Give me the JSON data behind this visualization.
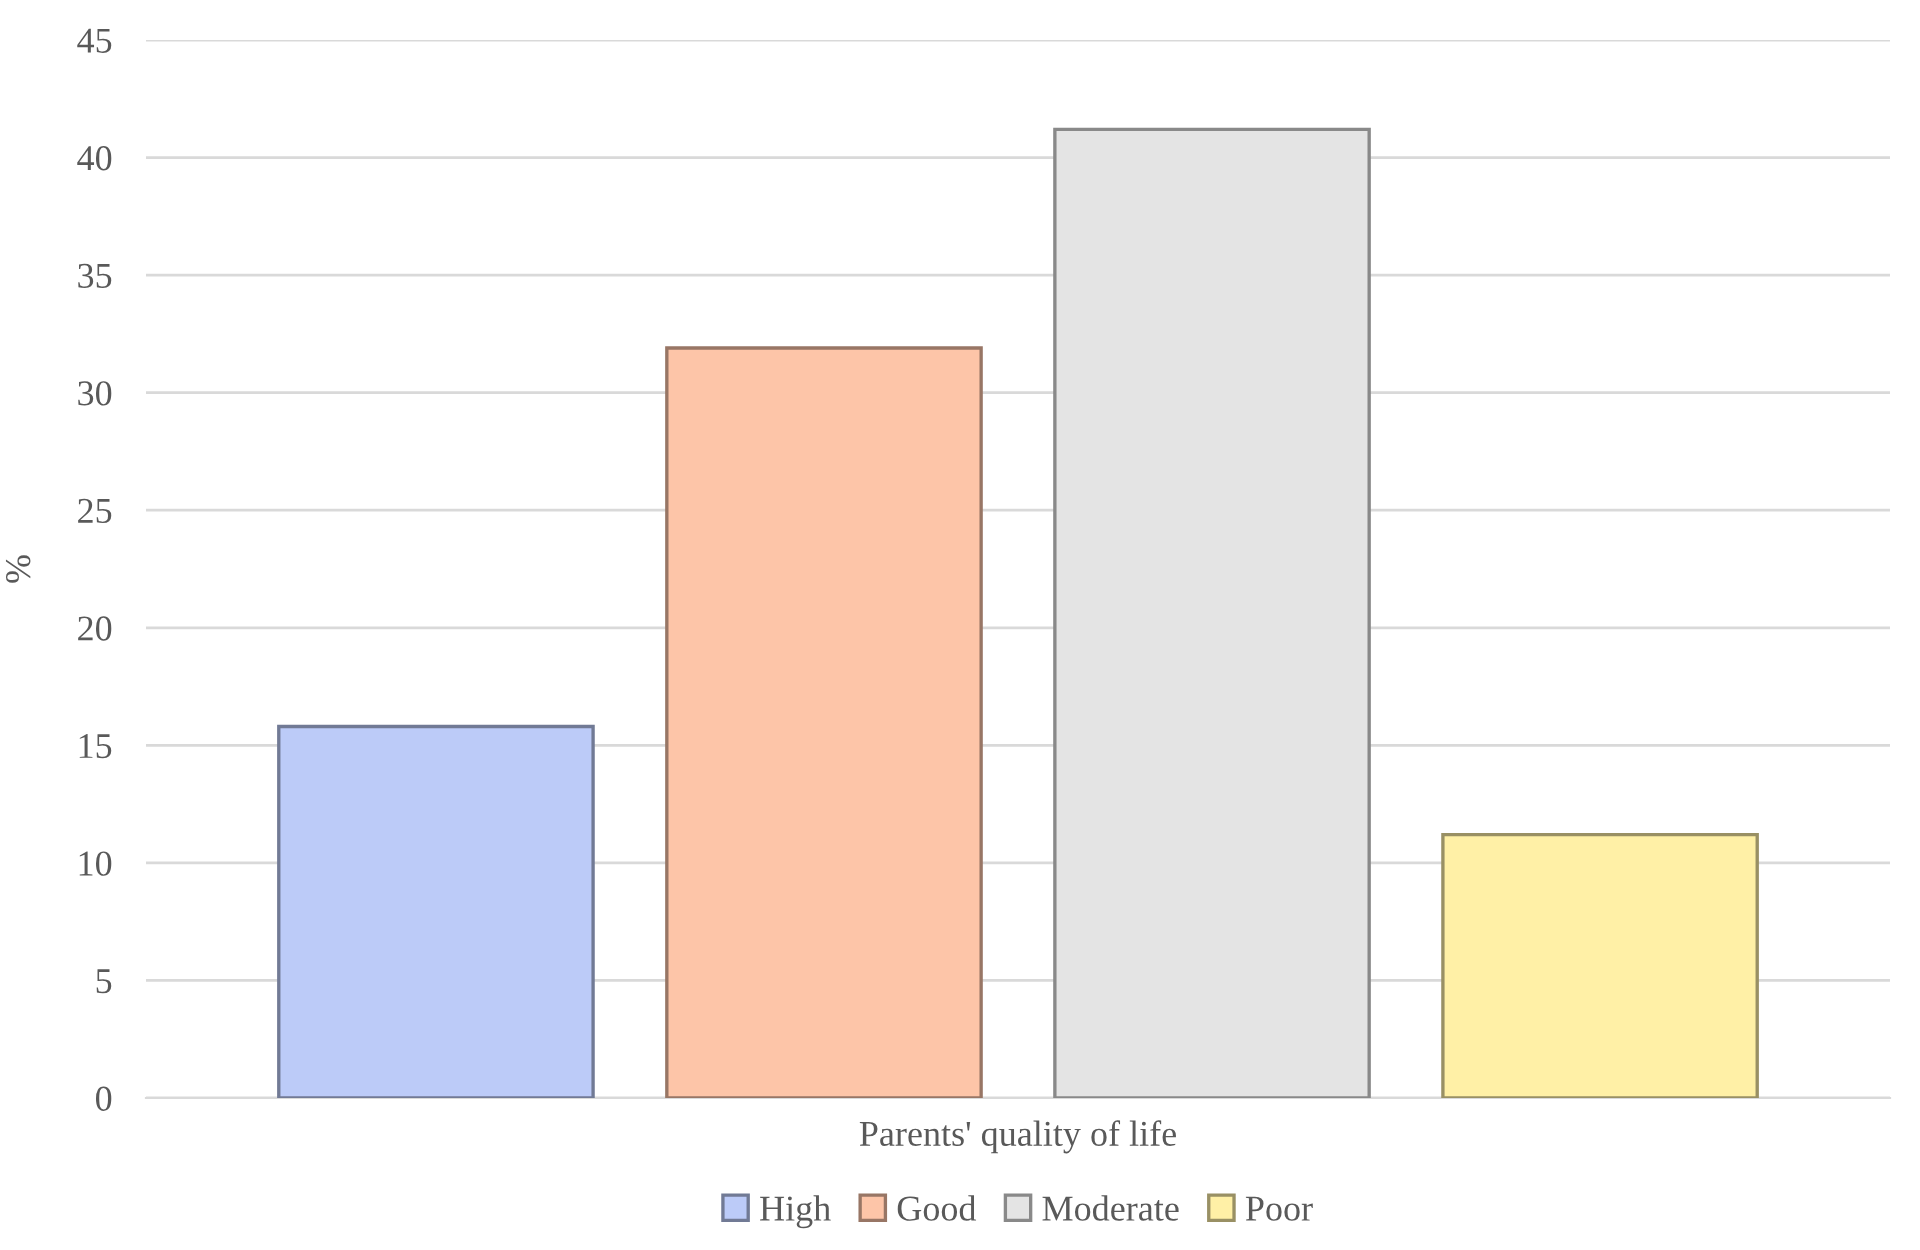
{
  "chart_data": {
    "type": "bar",
    "categories": [
      "Parents' quality of life"
    ],
    "ylabel": "%",
    "series": [
      {
        "name": "High",
        "color": "#bccbf8",
        "values": [
          15.8
        ]
      },
      {
        "name": "Good",
        "color": "#fdc5a8",
        "values": [
          31.9
        ]
      },
      {
        "name": "Moderate",
        "color": "#e4e4e4",
        "values": [
          41.2
        ]
      },
      {
        "name": "Poor",
        "color": "#fff0a6",
        "values": [
          11.2
        ]
      }
    ],
    "ylim": [
      0,
      45
    ],
    "yticks": [
      0,
      5,
      10,
      15,
      20,
      25,
      30,
      35,
      40,
      45
    ],
    "grid": "y",
    "legend": "bottom"
  }
}
